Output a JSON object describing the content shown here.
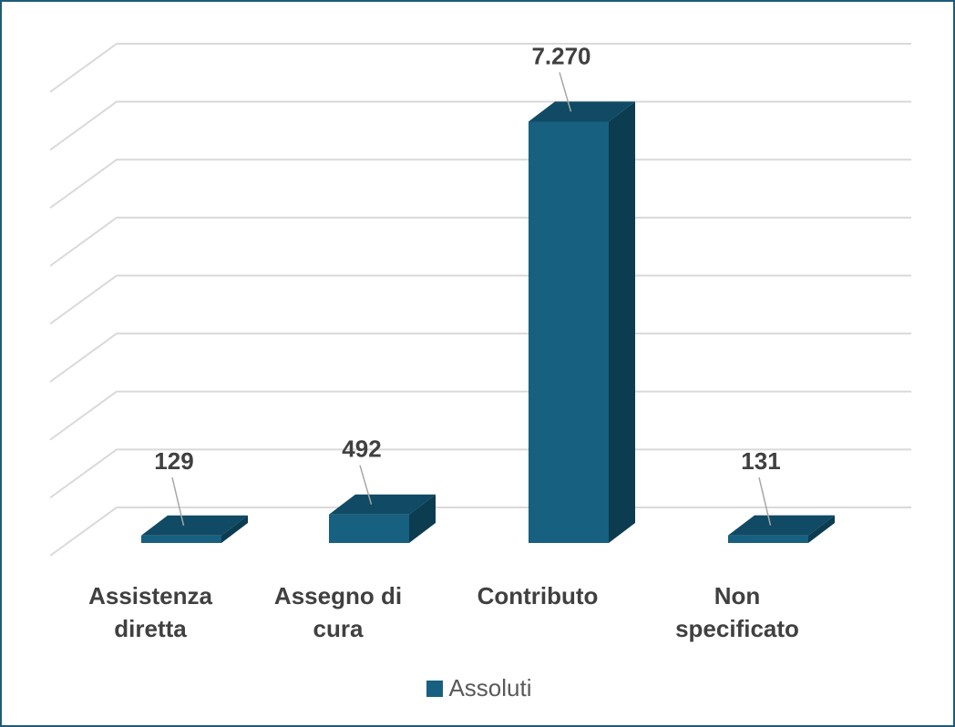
{
  "chart_data": {
    "type": "bar3d",
    "categories": [
      "Assistenza diretta",
      "Assegno di cura",
      "Contributo",
      "Non specificato"
    ],
    "series": [
      {
        "name": "Assoluti",
        "color": "#176080",
        "values": [
          129,
          492,
          7270,
          131
        ],
        "value_labels": [
          "129",
          "492",
          "7.270",
          "131"
        ]
      }
    ],
    "ylim": [
      0,
      8000
    ],
    "yticks": [
      0,
      1000,
      2000,
      3000,
      4000,
      5000,
      6000,
      7000,
      8000
    ],
    "grid": true
  }
}
